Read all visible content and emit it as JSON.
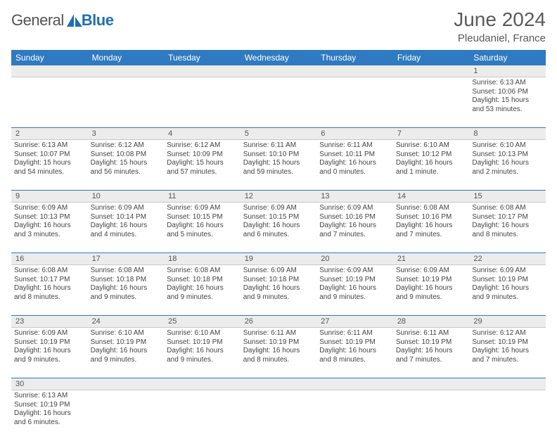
{
  "logo": {
    "general": "General",
    "blue": "Blue"
  },
  "title": "June 2024",
  "location": "Pleudaniel, France",
  "colors": {
    "header_bg": "#2f7ac0",
    "header_text": "#ffffff",
    "daynum_bg": "#ececec",
    "rule": "#2f7ac0",
    "logo_blue": "#1f6fb2"
  },
  "weekday_headers": [
    "Sunday",
    "Monday",
    "Tuesday",
    "Wednesday",
    "Thursday",
    "Friday",
    "Saturday"
  ],
  "weeks": [
    {
      "nums": [
        "",
        "",
        "",
        "",
        "",
        "",
        "1"
      ],
      "cells": [
        null,
        null,
        null,
        null,
        null,
        null,
        {
          "sunrise": "Sunrise: 6:13 AM",
          "sunset": "Sunset: 10:06 PM",
          "daylight1": "Daylight: 15 hours",
          "daylight2": "and 53 minutes."
        }
      ]
    },
    {
      "nums": [
        "2",
        "3",
        "4",
        "5",
        "6",
        "7",
        "8"
      ],
      "cells": [
        {
          "sunrise": "Sunrise: 6:13 AM",
          "sunset": "Sunset: 10:07 PM",
          "daylight1": "Daylight: 15 hours",
          "daylight2": "and 54 minutes."
        },
        {
          "sunrise": "Sunrise: 6:12 AM",
          "sunset": "Sunset: 10:08 PM",
          "daylight1": "Daylight: 15 hours",
          "daylight2": "and 56 minutes."
        },
        {
          "sunrise": "Sunrise: 6:12 AM",
          "sunset": "Sunset: 10:09 PM",
          "daylight1": "Daylight: 15 hours",
          "daylight2": "and 57 minutes."
        },
        {
          "sunrise": "Sunrise: 6:11 AM",
          "sunset": "Sunset: 10:10 PM",
          "daylight1": "Daylight: 15 hours",
          "daylight2": "and 59 minutes."
        },
        {
          "sunrise": "Sunrise: 6:11 AM",
          "sunset": "Sunset: 10:11 PM",
          "daylight1": "Daylight: 16 hours",
          "daylight2": "and 0 minutes."
        },
        {
          "sunrise": "Sunrise: 6:10 AM",
          "sunset": "Sunset: 10:12 PM",
          "daylight1": "Daylight: 16 hours",
          "daylight2": "and 1 minute."
        },
        {
          "sunrise": "Sunrise: 6:10 AM",
          "sunset": "Sunset: 10:13 PM",
          "daylight1": "Daylight: 16 hours",
          "daylight2": "and 2 minutes."
        }
      ]
    },
    {
      "nums": [
        "9",
        "10",
        "11",
        "12",
        "13",
        "14",
        "15"
      ],
      "cells": [
        {
          "sunrise": "Sunrise: 6:09 AM",
          "sunset": "Sunset: 10:13 PM",
          "daylight1": "Daylight: 16 hours",
          "daylight2": "and 3 minutes."
        },
        {
          "sunrise": "Sunrise: 6:09 AM",
          "sunset": "Sunset: 10:14 PM",
          "daylight1": "Daylight: 16 hours",
          "daylight2": "and 4 minutes."
        },
        {
          "sunrise": "Sunrise: 6:09 AM",
          "sunset": "Sunset: 10:15 PM",
          "daylight1": "Daylight: 16 hours",
          "daylight2": "and 5 minutes."
        },
        {
          "sunrise": "Sunrise: 6:09 AM",
          "sunset": "Sunset: 10:15 PM",
          "daylight1": "Daylight: 16 hours",
          "daylight2": "and 6 minutes."
        },
        {
          "sunrise": "Sunrise: 6:09 AM",
          "sunset": "Sunset: 10:16 PM",
          "daylight1": "Daylight: 16 hours",
          "daylight2": "and 7 minutes."
        },
        {
          "sunrise": "Sunrise: 6:08 AM",
          "sunset": "Sunset: 10:16 PM",
          "daylight1": "Daylight: 16 hours",
          "daylight2": "and 7 minutes."
        },
        {
          "sunrise": "Sunrise: 6:08 AM",
          "sunset": "Sunset: 10:17 PM",
          "daylight1": "Daylight: 16 hours",
          "daylight2": "and 8 minutes."
        }
      ]
    },
    {
      "nums": [
        "16",
        "17",
        "18",
        "19",
        "20",
        "21",
        "22"
      ],
      "cells": [
        {
          "sunrise": "Sunrise: 6:08 AM",
          "sunset": "Sunset: 10:17 PM",
          "daylight1": "Daylight: 16 hours",
          "daylight2": "and 8 minutes."
        },
        {
          "sunrise": "Sunrise: 6:08 AM",
          "sunset": "Sunset: 10:18 PM",
          "daylight1": "Daylight: 16 hours",
          "daylight2": "and 9 minutes."
        },
        {
          "sunrise": "Sunrise: 6:08 AM",
          "sunset": "Sunset: 10:18 PM",
          "daylight1": "Daylight: 16 hours",
          "daylight2": "and 9 minutes."
        },
        {
          "sunrise": "Sunrise: 6:09 AM",
          "sunset": "Sunset: 10:18 PM",
          "daylight1": "Daylight: 16 hours",
          "daylight2": "and 9 minutes."
        },
        {
          "sunrise": "Sunrise: 6:09 AM",
          "sunset": "Sunset: 10:19 PM",
          "daylight1": "Daylight: 16 hours",
          "daylight2": "and 9 minutes."
        },
        {
          "sunrise": "Sunrise: 6:09 AM",
          "sunset": "Sunset: 10:19 PM",
          "daylight1": "Daylight: 16 hours",
          "daylight2": "and 9 minutes."
        },
        {
          "sunrise": "Sunrise: 6:09 AM",
          "sunset": "Sunset: 10:19 PM",
          "daylight1": "Daylight: 16 hours",
          "daylight2": "and 9 minutes."
        }
      ]
    },
    {
      "nums": [
        "23",
        "24",
        "25",
        "26",
        "27",
        "28",
        "29"
      ],
      "cells": [
        {
          "sunrise": "Sunrise: 6:09 AM",
          "sunset": "Sunset: 10:19 PM",
          "daylight1": "Daylight: 16 hours",
          "daylight2": "and 9 minutes."
        },
        {
          "sunrise": "Sunrise: 6:10 AM",
          "sunset": "Sunset: 10:19 PM",
          "daylight1": "Daylight: 16 hours",
          "daylight2": "and 9 minutes."
        },
        {
          "sunrise": "Sunrise: 6:10 AM",
          "sunset": "Sunset: 10:19 PM",
          "daylight1": "Daylight: 16 hours",
          "daylight2": "and 9 minutes."
        },
        {
          "sunrise": "Sunrise: 6:11 AM",
          "sunset": "Sunset: 10:19 PM",
          "daylight1": "Daylight: 16 hours",
          "daylight2": "and 8 minutes."
        },
        {
          "sunrise": "Sunrise: 6:11 AM",
          "sunset": "Sunset: 10:19 PM",
          "daylight1": "Daylight: 16 hours",
          "daylight2": "and 8 minutes."
        },
        {
          "sunrise": "Sunrise: 6:11 AM",
          "sunset": "Sunset: 10:19 PM",
          "daylight1": "Daylight: 16 hours",
          "daylight2": "and 7 minutes."
        },
        {
          "sunrise": "Sunrise: 6:12 AM",
          "sunset": "Sunset: 10:19 PM",
          "daylight1": "Daylight: 16 hours",
          "daylight2": "and 7 minutes."
        }
      ]
    },
    {
      "nums": [
        "30",
        "",
        "",
        "",
        "",
        "",
        ""
      ],
      "cells": [
        {
          "sunrise": "Sunrise: 6:13 AM",
          "sunset": "Sunset: 10:19 PM",
          "daylight1": "Daylight: 16 hours",
          "daylight2": "and 6 minutes."
        },
        null,
        null,
        null,
        null,
        null,
        null
      ]
    }
  ]
}
